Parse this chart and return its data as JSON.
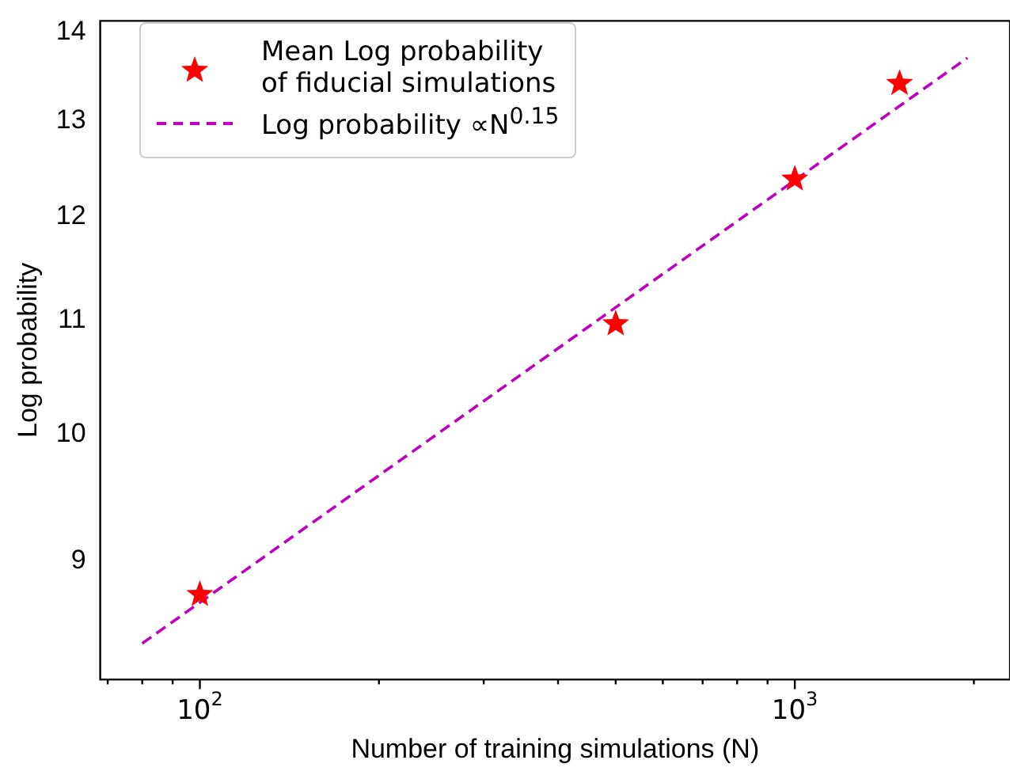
{
  "chart_data": {
    "type": "scatter",
    "xlabel": "Number of training simulations (N)",
    "ylabel": "Log probability",
    "log": "xy",
    "grid": false,
    "legend": "top left",
    "marker": "star",
    "xlim": [
      68,
      2300
    ],
    "ylim": [
      8.15,
      14.13
    ],
    "xticks": [
      {
        "value": 70,
        "label": null
      },
      {
        "value": 80,
        "label": null
      },
      {
        "value": 90,
        "label": null
      },
      {
        "value": 100,
        "label": "10$^{2}$"
      },
      {
        "value": 200,
        "label": null
      },
      {
        "value": 300,
        "label": null
      },
      {
        "value": 400,
        "label": null
      },
      {
        "value": 500,
        "label": null
      },
      {
        "value": 600,
        "label": null
      },
      {
        "value": 700,
        "label": null
      },
      {
        "value": 800,
        "label": null
      },
      {
        "value": 900,
        "label": null
      },
      {
        "value": 1000,
        "label": "10$^{3}$"
      },
      {
        "value": 2000,
        "label": null
      }
    ],
    "yticks": [
      9,
      10,
      11,
      12,
      13,
      14
    ],
    "series": [
      {
        "name": "Mean Log probability\nof fiducial simulations",
        "color": "#ff0000",
        "x": [
          100,
          500,
          1000,
          1500
        ],
        "values": [
          8.75,
          10.97,
          12.38,
          13.41
        ]
      },
      {
        "name": "Log probability ∝N$^{0.15}$",
        "type": "line",
        "line_style": "dashed",
        "marker": "none",
        "color": "#bf00bf",
        "x": [
          80,
          1950
        ],
        "values": [
          8.4,
          13.7
        ]
      }
    ]
  }
}
